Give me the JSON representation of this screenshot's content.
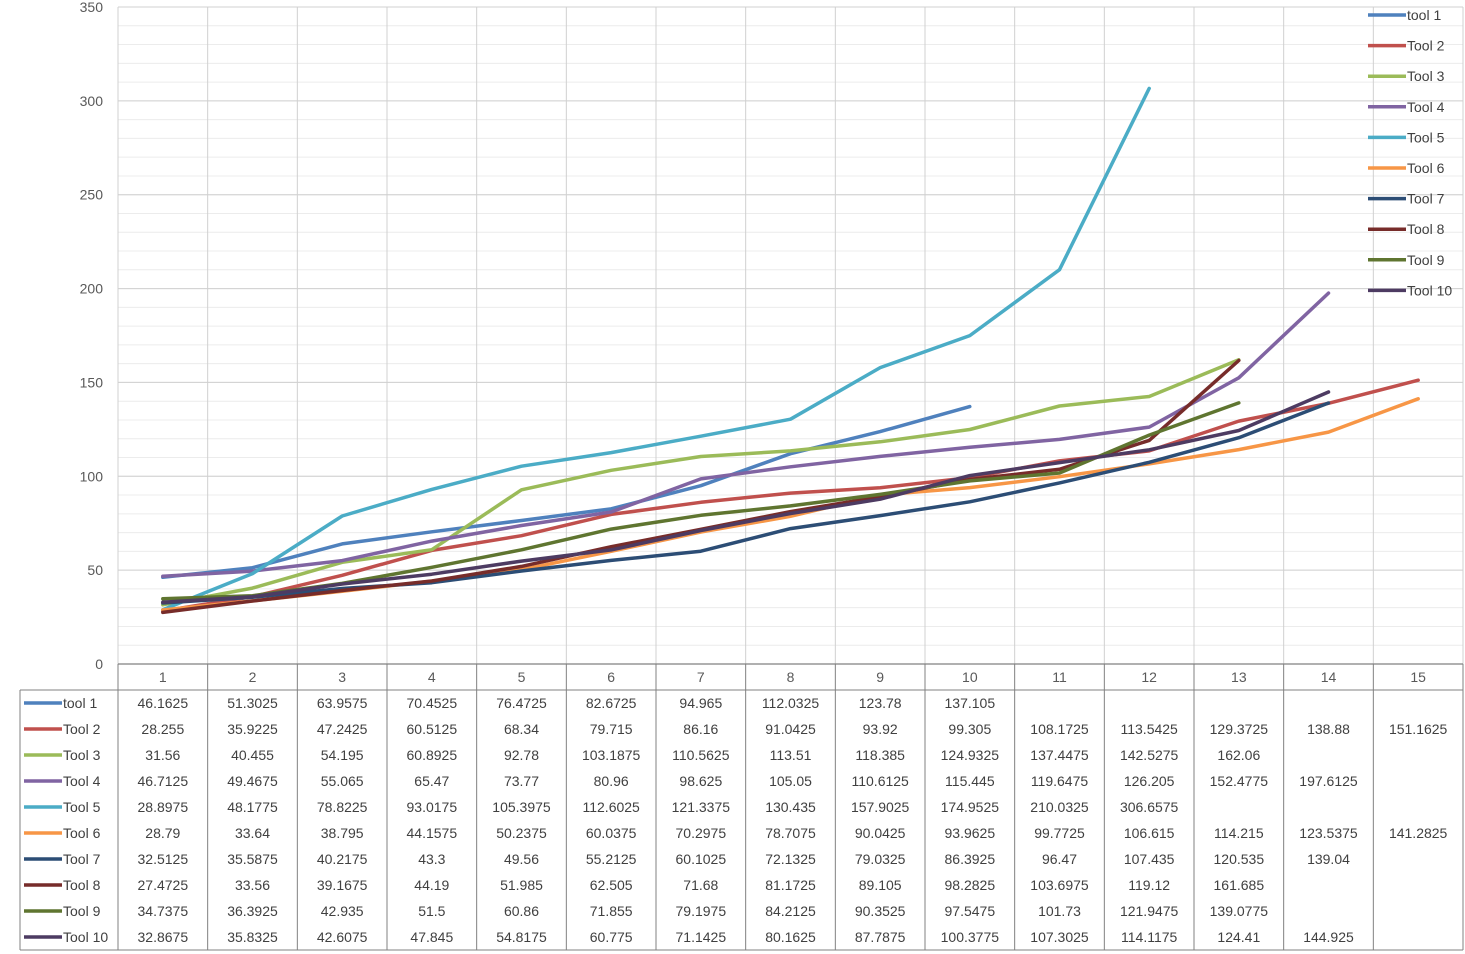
{
  "chart_data": {
    "type": "line",
    "title": "",
    "xlabel": "",
    "ylabel": "",
    "categories": [
      "1",
      "2",
      "3",
      "4",
      "5",
      "6",
      "7",
      "8",
      "9",
      "10",
      "11",
      "12",
      "13",
      "14",
      "15"
    ],
    "ylim": [
      0,
      350
    ],
    "yticks": [
      0,
      50,
      100,
      150,
      200,
      250,
      300,
      350
    ],
    "grid": true,
    "legend_position": "top-right",
    "data_table": true,
    "series": [
      {
        "name": "tool 1",
        "color": "#4F81BD",
        "values": [
          46.1625,
          51.3025,
          63.9575,
          70.4525,
          76.4725,
          82.6725,
          94.965,
          112.0325,
          123.78,
          137.105,
          null,
          null,
          null,
          null,
          null
        ]
      },
      {
        "name": "Tool 2",
        "color": "#C0504D",
        "values": [
          28.255,
          35.9225,
          47.2425,
          60.5125,
          68.34,
          79.715,
          86.16,
          91.0425,
          93.92,
          99.305,
          108.1725,
          113.5425,
          129.3725,
          138.88,
          151.1625
        ]
      },
      {
        "name": "Tool 3",
        "color": "#9BBB59",
        "values": [
          31.56,
          40.455,
          54.195,
          60.8925,
          92.78,
          103.1875,
          110.5625,
          113.51,
          118.385,
          124.9325,
          137.4475,
          142.5275,
          162.06,
          null,
          null
        ]
      },
      {
        "name": "Tool 4",
        "color": "#8064A2",
        "values": [
          46.7125,
          49.4675,
          55.065,
          65.47,
          73.77,
          80.96,
          98.625,
          105.05,
          110.6125,
          115.445,
          119.6475,
          126.205,
          152.4775,
          197.6125,
          null
        ]
      },
      {
        "name": "Tool 5",
        "color": "#4BACC6",
        "values": [
          28.8975,
          48.1775,
          78.8225,
          93.0175,
          105.3975,
          112.6025,
          121.3375,
          130.435,
          157.9025,
          174.9525,
          210.0325,
          306.6575,
          null,
          null,
          null
        ]
      },
      {
        "name": "Tool 6",
        "color": "#F79646",
        "values": [
          28.79,
          33.64,
          38.795,
          44.1575,
          50.2375,
          60.0375,
          70.2975,
          78.7075,
          90.0425,
          93.9625,
          99.7725,
          106.615,
          114.215,
          123.5375,
          141.2825
        ]
      },
      {
        "name": "Tool 7",
        "color": "#2C4D75",
        "values": [
          32.5125,
          35.5875,
          40.2175,
          43.3,
          49.56,
          55.2125,
          60.1025,
          72.1325,
          79.0325,
          86.3925,
          96.47,
          107.435,
          120.535,
          139.04,
          null
        ]
      },
      {
        "name": "Tool 8",
        "color": "#772C2A",
        "values": [
          27.4725,
          33.56,
          39.1675,
          44.19,
          51.985,
          62.505,
          71.68,
          81.1725,
          89.105,
          98.2825,
          103.6975,
          119.12,
          161.685,
          null,
          null
        ]
      },
      {
        "name": "Tool 9",
        "color": "#5F7530",
        "values": [
          34.7375,
          36.3925,
          42.935,
          51.5,
          60.86,
          71.855,
          79.1975,
          84.2125,
          90.3525,
          97.5475,
          101.73,
          121.9475,
          139.0775,
          null,
          null
        ]
      },
      {
        "name": "Tool 10",
        "color": "#4D3B62",
        "values": [
          32.8675,
          35.8325,
          42.6075,
          47.845,
          54.8175,
          60.775,
          71.1425,
          80.1625,
          87.7875,
          100.3775,
          107.3025,
          114.1175,
          124.41,
          144.925,
          null
        ]
      }
    ]
  }
}
